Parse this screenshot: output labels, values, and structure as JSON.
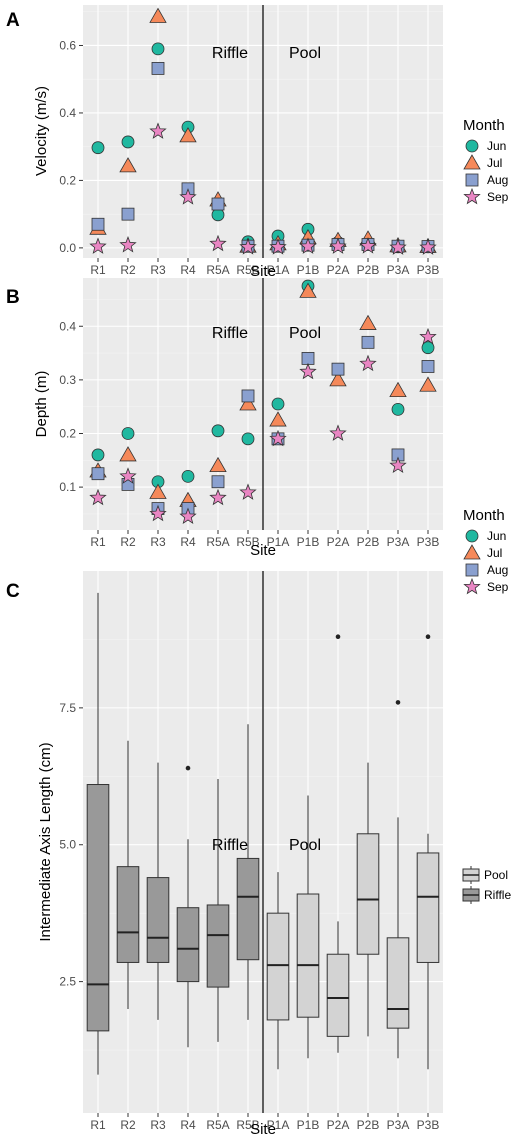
{
  "chart_data": [
    {
      "panel": "A",
      "type": "scatter",
      "categories": [
        "R1",
        "R2",
        "R3",
        "R4",
        "R5A",
        "R5B",
        "P1A",
        "P1B",
        "P2A",
        "P2B",
        "P3A",
        "P3B"
      ],
      "xlabel": "Site",
      "ylabel": "Velocity (m/s)",
      "ylim": [
        -0.03,
        0.72
      ],
      "yticks": [
        "0.0",
        "0.2",
        "0.4",
        "0.6"
      ],
      "ytick_values": [
        0,
        0.2,
        0.4,
        0.6
      ],
      "regions": [
        "Riffle",
        "Pool"
      ],
      "legend_title": "Month",
      "legend_placement": "right",
      "grid": true,
      "series": [
        {
          "name": "Jun",
          "values": [
            0.297,
            0.314,
            0.59,
            0.358,
            0.098,
            0.018,
            0.035,
            0.055,
            0.016,
            0.015,
            0.003,
            0.003
          ]
        },
        {
          "name": "Jul",
          "values": [
            0.058,
            0.243,
            0.686,
            0.332,
            0.142,
            0.005,
            0.012,
            0.03,
            0.022,
            0.026,
            0.006,
            0.004
          ]
        },
        {
          "name": "Aug",
          "values": [
            0.07,
            0.1,
            0.532,
            0.175,
            0.13,
            0.005,
            0.005,
            0.008,
            0.01,
            0.01,
            0.005,
            0.004
          ]
        },
        {
          "name": "Sep",
          "values": [
            0.004,
            0.008,
            0.345,
            0.15,
            0.012,
            0.002,
            0.002,
            0.004,
            0.004,
            0.005,
            0.001,
            0.001
          ]
        }
      ]
    },
    {
      "panel": "B",
      "type": "scatter",
      "categories": [
        "R1",
        "R2",
        "R3",
        "R4",
        "R5A",
        "R5B",
        "P1A",
        "P1B",
        "P2A",
        "P2B",
        "P3A",
        "P3B"
      ],
      "xlabel": "Site",
      "ylabel": "Depth (m)",
      "ylim": [
        0.02,
        0.49
      ],
      "yticks": [
        "0.1",
        "0.2",
        "0.3",
        "0.4"
      ],
      "ytick_values": [
        0.1,
        0.2,
        0.3,
        0.4
      ],
      "regions": [
        "Riffle",
        "Pool"
      ],
      "legend_title": "Month",
      "legend_placement": "right",
      "grid": true,
      "series": [
        {
          "name": "Jun",
          "values": [
            0.16,
            0.2,
            0.11,
            0.12,
            0.205,
            0.19,
            0.255,
            0.475,
            null,
            null,
            0.245,
            0.36
          ]
        },
        {
          "name": "Jul",
          "values": [
            0.13,
            0.16,
            0.09,
            0.075,
            0.14,
            0.255,
            0.225,
            0.465,
            0.3,
            0.405,
            0.28,
            0.29
          ]
        },
        {
          "name": "Aug",
          "values": [
            0.125,
            0.105,
            0.06,
            0.06,
            0.11,
            0.27,
            0.19,
            0.34,
            0.32,
            0.37,
            0.16,
            0.325
          ]
        },
        {
          "name": "Sep",
          "values": [
            0.08,
            0.12,
            0.05,
            0.045,
            0.08,
            0.09,
            0.19,
            0.315,
            0.2,
            0.33,
            0.14,
            0.38
          ]
        }
      ]
    },
    {
      "panel": "C",
      "type": "boxplot",
      "categories": [
        "R1",
        "R2",
        "R3",
        "R4",
        "R5A",
        "R5B",
        "P1A",
        "P1B",
        "P2A",
        "P2B",
        "P3A",
        "P3B"
      ],
      "xlabel": "Site",
      "ylabel": "Intermediate Axis Length (cm)",
      "ylim": [
        0.1,
        10.0
      ],
      "yticks": [
        "2.5",
        "5.0",
        "7.5"
      ],
      "ytick_values": [
        2.5,
        5.0,
        7.5
      ],
      "regions": [
        "Riffle",
        "Pool"
      ],
      "legend_placement": "right",
      "grid": true,
      "legend": [
        {
          "name": "Pool",
          "color": "#d3d3d3"
        },
        {
          "name": "Riffle",
          "color": "#999999"
        }
      ],
      "boxes": [
        {
          "site": "R1",
          "group": "Riffle",
          "min": 0.8,
          "q1": 1.6,
          "median": 2.45,
          "q3": 6.1,
          "max": 9.6,
          "outliers": []
        },
        {
          "site": "R2",
          "group": "Riffle",
          "min": 2.0,
          "q1": 2.85,
          "median": 3.4,
          "q3": 4.6,
          "max": 6.9,
          "outliers": []
        },
        {
          "site": "R3",
          "group": "Riffle",
          "min": 1.8,
          "q1": 2.85,
          "median": 3.3,
          "q3": 4.4,
          "max": 6.5,
          "outliers": []
        },
        {
          "site": "R4",
          "group": "Riffle",
          "min": 1.3,
          "q1": 2.5,
          "median": 3.1,
          "q3": 3.85,
          "max": 5.1,
          "outliers": [
            6.4
          ]
        },
        {
          "site": "R5A",
          "group": "Riffle",
          "min": 1.4,
          "q1": 2.4,
          "median": 3.35,
          "q3": 3.9,
          "max": 6.2,
          "outliers": []
        },
        {
          "site": "R5B",
          "group": "Riffle",
          "min": 1.8,
          "q1": 2.9,
          "median": 4.05,
          "q3": 4.75,
          "max": 7.2,
          "outliers": []
        },
        {
          "site": "P1A",
          "group": "Pool",
          "min": 0.9,
          "q1": 1.8,
          "median": 2.8,
          "q3": 3.75,
          "max": 4.5,
          "outliers": []
        },
        {
          "site": "P1B",
          "group": "Pool",
          "min": 1.1,
          "q1": 1.85,
          "median": 2.8,
          "q3": 4.1,
          "max": 5.9,
          "outliers": []
        },
        {
          "site": "P2A",
          "group": "Pool",
          "min": 1.2,
          "q1": 1.5,
          "median": 2.2,
          "q3": 3.0,
          "max": 3.6,
          "outliers": [
            8.8
          ]
        },
        {
          "site": "P2B",
          "group": "Pool",
          "min": 1.5,
          "q1": 3.0,
          "median": 4.0,
          "q3": 5.2,
          "max": 6.5,
          "outliers": []
        },
        {
          "site": "P3A",
          "group": "Pool",
          "min": 1.1,
          "q1": 1.65,
          "median": 2.0,
          "q3": 3.3,
          "max": 5.5,
          "outliers": [
            7.6
          ]
        },
        {
          "site": "P3B",
          "group": "Pool",
          "min": 0.9,
          "q1": 2.85,
          "median": 4.05,
          "q3": 4.85,
          "max": 5.2,
          "outliers": [
            8.8
          ]
        }
      ]
    }
  ],
  "styles": {
    "panel_bg": "#ebebeb",
    "grid_major": "#ffffff",
    "grid_minor": "#f4f4f4",
    "series_colors": {
      "Jun": "#20b8a0",
      "Jul": "#f5895a",
      "Aug": "#8aa0cf",
      "Sep": "#e986c3"
    },
    "series_shapes": {
      "Jun": "circle",
      "Jul": "triangle",
      "Aug": "square",
      "Sep": "star"
    }
  }
}
